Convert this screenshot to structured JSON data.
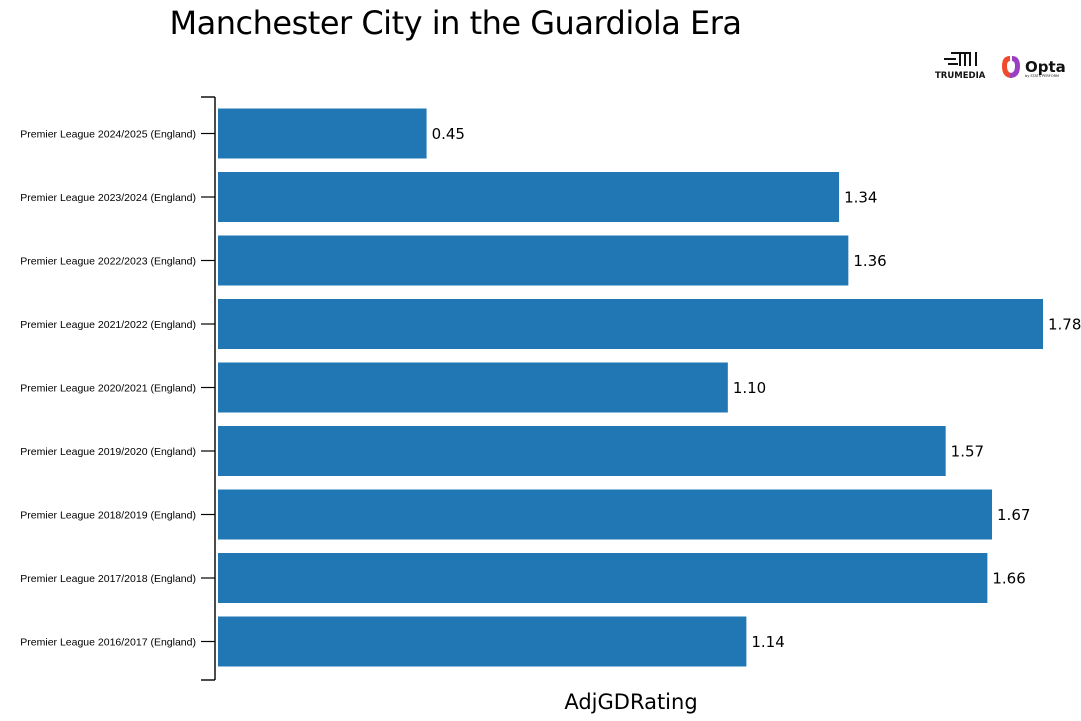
{
  "logos": {
    "trumedia": "TRUMEDIA",
    "opta": "Opta",
    "opta_sub": "by STATS PERFORM"
  },
  "chart_data": {
    "type": "bar",
    "orientation": "horizontal",
    "title": "Manchester City in the Guardiola Era",
    "xlabel": "AdjGDRating",
    "ylabel": "",
    "xlim": [
      0,
      1.78
    ],
    "grid": false,
    "bar_color": "#2077b4",
    "categories": [
      "Premier League 2024/2025 (England)",
      "Premier League 2023/2024 (England)",
      "Premier League 2022/2023 (England)",
      "Premier League 2021/2022 (England)",
      "Premier League 2020/2021 (England)",
      "Premier League 2019/2020 (England)",
      "Premier League 2018/2019 (England)",
      "Premier League 2017/2018 (England)",
      "Premier League 2016/2017 (England)"
    ],
    "values": [
      0.45,
      1.34,
      1.36,
      1.78,
      1.1,
      1.57,
      1.67,
      1.66,
      1.14
    ],
    "value_labels": [
      "0.45",
      "1.34",
      "1.36",
      "1.78",
      "1.10",
      "1.57",
      "1.67",
      "1.66",
      "1.14"
    ]
  }
}
